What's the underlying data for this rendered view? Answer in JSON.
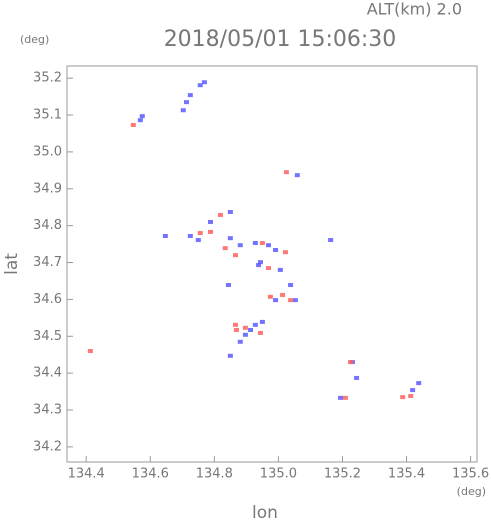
{
  "chart_data": {
    "type": "scatter",
    "title": "2018/05/01 15:06:30",
    "subtitle": "ALT(km) 2.0",
    "x_label": "lon",
    "y_label": "lat",
    "x_unit": "(deg)",
    "y_unit": "(deg)",
    "xlim": [
      134.34,
      135.62
    ],
    "ylim": [
      34.159,
      35.233
    ],
    "xticks": [
      134.4,
      134.6,
      134.8,
      {
        "value": 135,
        "label": "135.0"
      },
      135.2,
      135.4,
      135.6
    ],
    "yticks": [
      34.2,
      34.3,
      34.4,
      34.5,
      34.6,
      34.7,
      34.8,
      34.9,
      {
        "value": 35,
        "label": "35.0"
      },
      35.1,
      35.2
    ],
    "series": [
      {
        "color": "#5a5aff",
        "x": [
          134.575,
          134.569,
          134.725,
          134.713,
          134.703,
          134.756,
          134.769,
          134.85,
          134.881,
          134.928,
          134.969,
          134.991,
          134.944,
          135.006,
          135.038,
          135.053,
          134.913,
          134.95,
          134.881,
          134.85,
          135.059,
          135.163,
          135.231,
          135.244,
          135.194,
          135.419,
          135.438,
          134.75,
          134.647,
          134.85,
          134.788,
          134.725,
          134.938,
          134.844,
          134.991,
          134.928,
          134.897
        ],
        "values": [
          35.097,
          35.086,
          35.154,
          35.135,
          35.113,
          35.181,
          35.189,
          34.766,
          34.747,
          34.753,
          34.747,
          34.734,
          34.701,
          34.68,
          34.639,
          34.598,
          34.517,
          34.539,
          34.485,
          34.447,
          34.937,
          34.761,
          34.43,
          34.387,
          34.333,
          34.354,
          34.373,
          34.761,
          34.772,
          34.837,
          34.81,
          34.772,
          34.693,
          34.639,
          34.598,
          34.531,
          34.504
        ]
      },
      {
        "color": "#ff6060",
        "x": [
          134.413,
          134.547,
          135.025,
          134.819,
          134.756,
          134.788,
          134.834,
          134.866,
          134.95,
          135.022,
          134.969,
          135.013,
          135.038,
          134.866,
          134.897,
          134.944,
          135.225,
          135.209,
          135.388,
          135.413,
          134.869,
          134.975
        ],
        "values": [
          34.46,
          35.073,
          34.945,
          34.829,
          34.78,
          34.783,
          34.739,
          34.72,
          34.753,
          34.728,
          34.685,
          34.612,
          34.598,
          34.531,
          34.523,
          34.509,
          34.43,
          34.333,
          34.335,
          34.338,
          34.517,
          34.607
        ]
      }
    ]
  }
}
